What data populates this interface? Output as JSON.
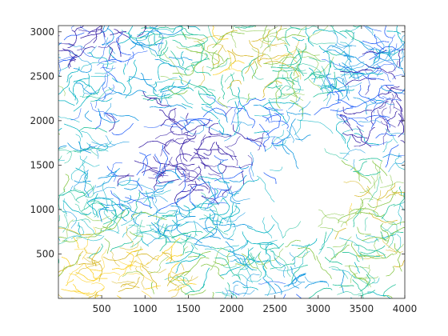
{
  "chart_data": {
    "type": "contour",
    "title": "",
    "xlabel": "",
    "ylabel": "",
    "xlim": [
      0,
      4000
    ],
    "ylim": [
      0,
      3070
    ],
    "x_ticks": [
      500,
      1000,
      1500,
      2000,
      2500,
      3000,
      3500,
      4000
    ],
    "y_ticks": [
      500,
      1000,
      1500,
      2000,
      2500,
      3000
    ],
    "grid": false,
    "colormap": [
      "#3e26a8",
      "#2e66f8",
      "#1699e0",
      "#10b6c5",
      "#2cc49e",
      "#8cc94e",
      "#d8ba30",
      "#fcd22b"
    ],
    "empty_regions": [
      {
        "label": "",
        "x": [
          500,
          1350
        ],
        "y": [
          1500,
          2600
        ]
      },
      {
        "label": "",
        "x": [
          1950,
          3350
        ],
        "y": [
          700,
          2250
        ]
      },
      {
        "label": "",
        "x": [
          1550,
          2000
        ],
        "y": [
          2950,
          3070
        ]
      }
    ]
  }
}
